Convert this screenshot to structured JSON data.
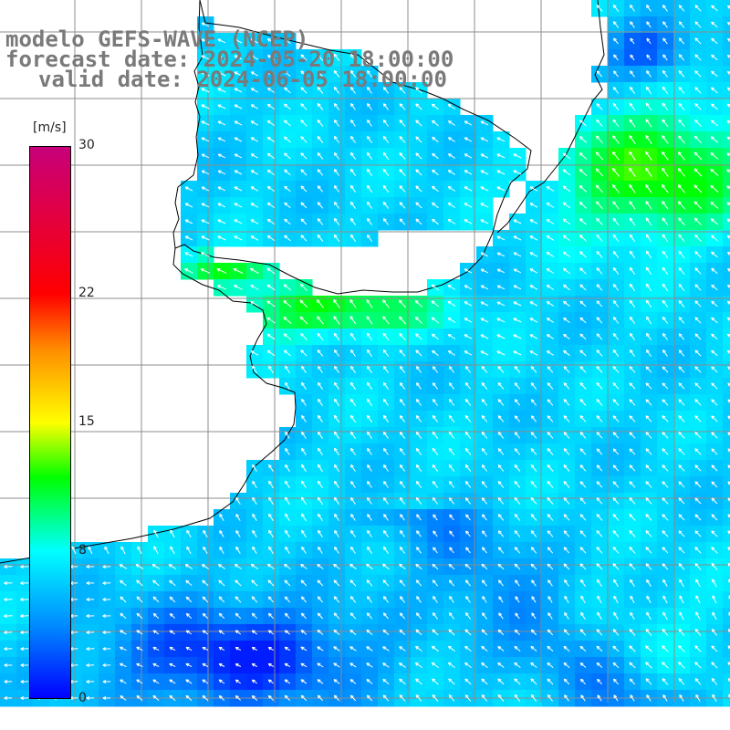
{
  "title": {
    "line1": "modelo GEFS-WAVE (NCEP)",
    "line2": "forecast date: 2024-05-20 18:00:00",
    "line3": "valid date: 2024-06-05 18:00:00"
  },
  "colorbar": {
    "unit": "[m/s]",
    "ticks": [
      "30",
      "22",
      "15",
      "8",
      "0"
    ],
    "tick_values": [
      30,
      22,
      15,
      8,
      0
    ],
    "stops": [
      {
        "value": 0,
        "color": "#0000ff"
      },
      {
        "value": 4,
        "color": "#008cff"
      },
      {
        "value": 8,
        "color": "#00ffff"
      },
      {
        "value": 12,
        "color": "#00ff00"
      },
      {
        "value": 15,
        "color": "#ffff00"
      },
      {
        "value": 19,
        "color": "#ff8c00"
      },
      {
        "value": 22,
        "color": "#ff0000"
      },
      {
        "value": 30,
        "color": "#c8007a"
      }
    ]
  },
  "colors": {
    "land": "#ffffff",
    "coast": "#000000",
    "grid": "#8c8c8c",
    "arrow": "#ffffff",
    "axis_labels": "#8a8a8a"
  }
}
